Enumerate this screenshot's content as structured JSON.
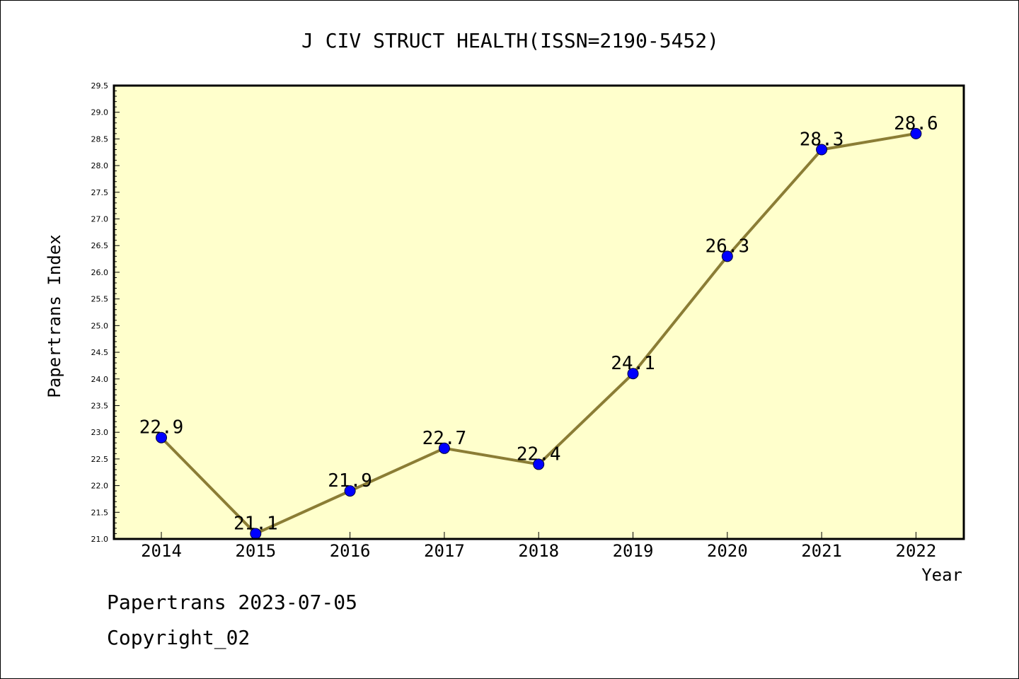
{
  "chart_data": {
    "type": "line",
    "title": "J CIV STRUCT HEALTH(ISSN=2190-5452)",
    "xlabel": "Year",
    "ylabel": "Papertrans Index",
    "categories": [
      "2014",
      "2015",
      "2016",
      "2017",
      "2018",
      "2019",
      "2020",
      "2021",
      "2022"
    ],
    "values": [
      22.9,
      21.1,
      21.9,
      22.7,
      22.4,
      24.1,
      26.3,
      28.3,
      28.6
    ],
    "data_labels": [
      "22.9",
      "21.1",
      "21.9",
      "22.7",
      "22.4",
      "24.1",
      "26.3",
      "28.3",
      "28.6"
    ],
    "ylim": [
      21.0,
      29.5
    ],
    "yticks": [
      "21.0",
      "21.5",
      "22.0",
      "22.5",
      "23.0",
      "23.5",
      "24.0",
      "24.5",
      "25.0",
      "25.5",
      "26.0",
      "26.5",
      "27.0",
      "27.5",
      "28.0",
      "28.5",
      "29.0",
      "29.5"
    ],
    "grid": false,
    "colors": {
      "line": "#8b7d35",
      "marker": "#0000ff",
      "plot_background": "#ffffcc"
    }
  },
  "footer": {
    "source": "Papertrans 2023-07-05",
    "copyright": "Copyright_02"
  }
}
